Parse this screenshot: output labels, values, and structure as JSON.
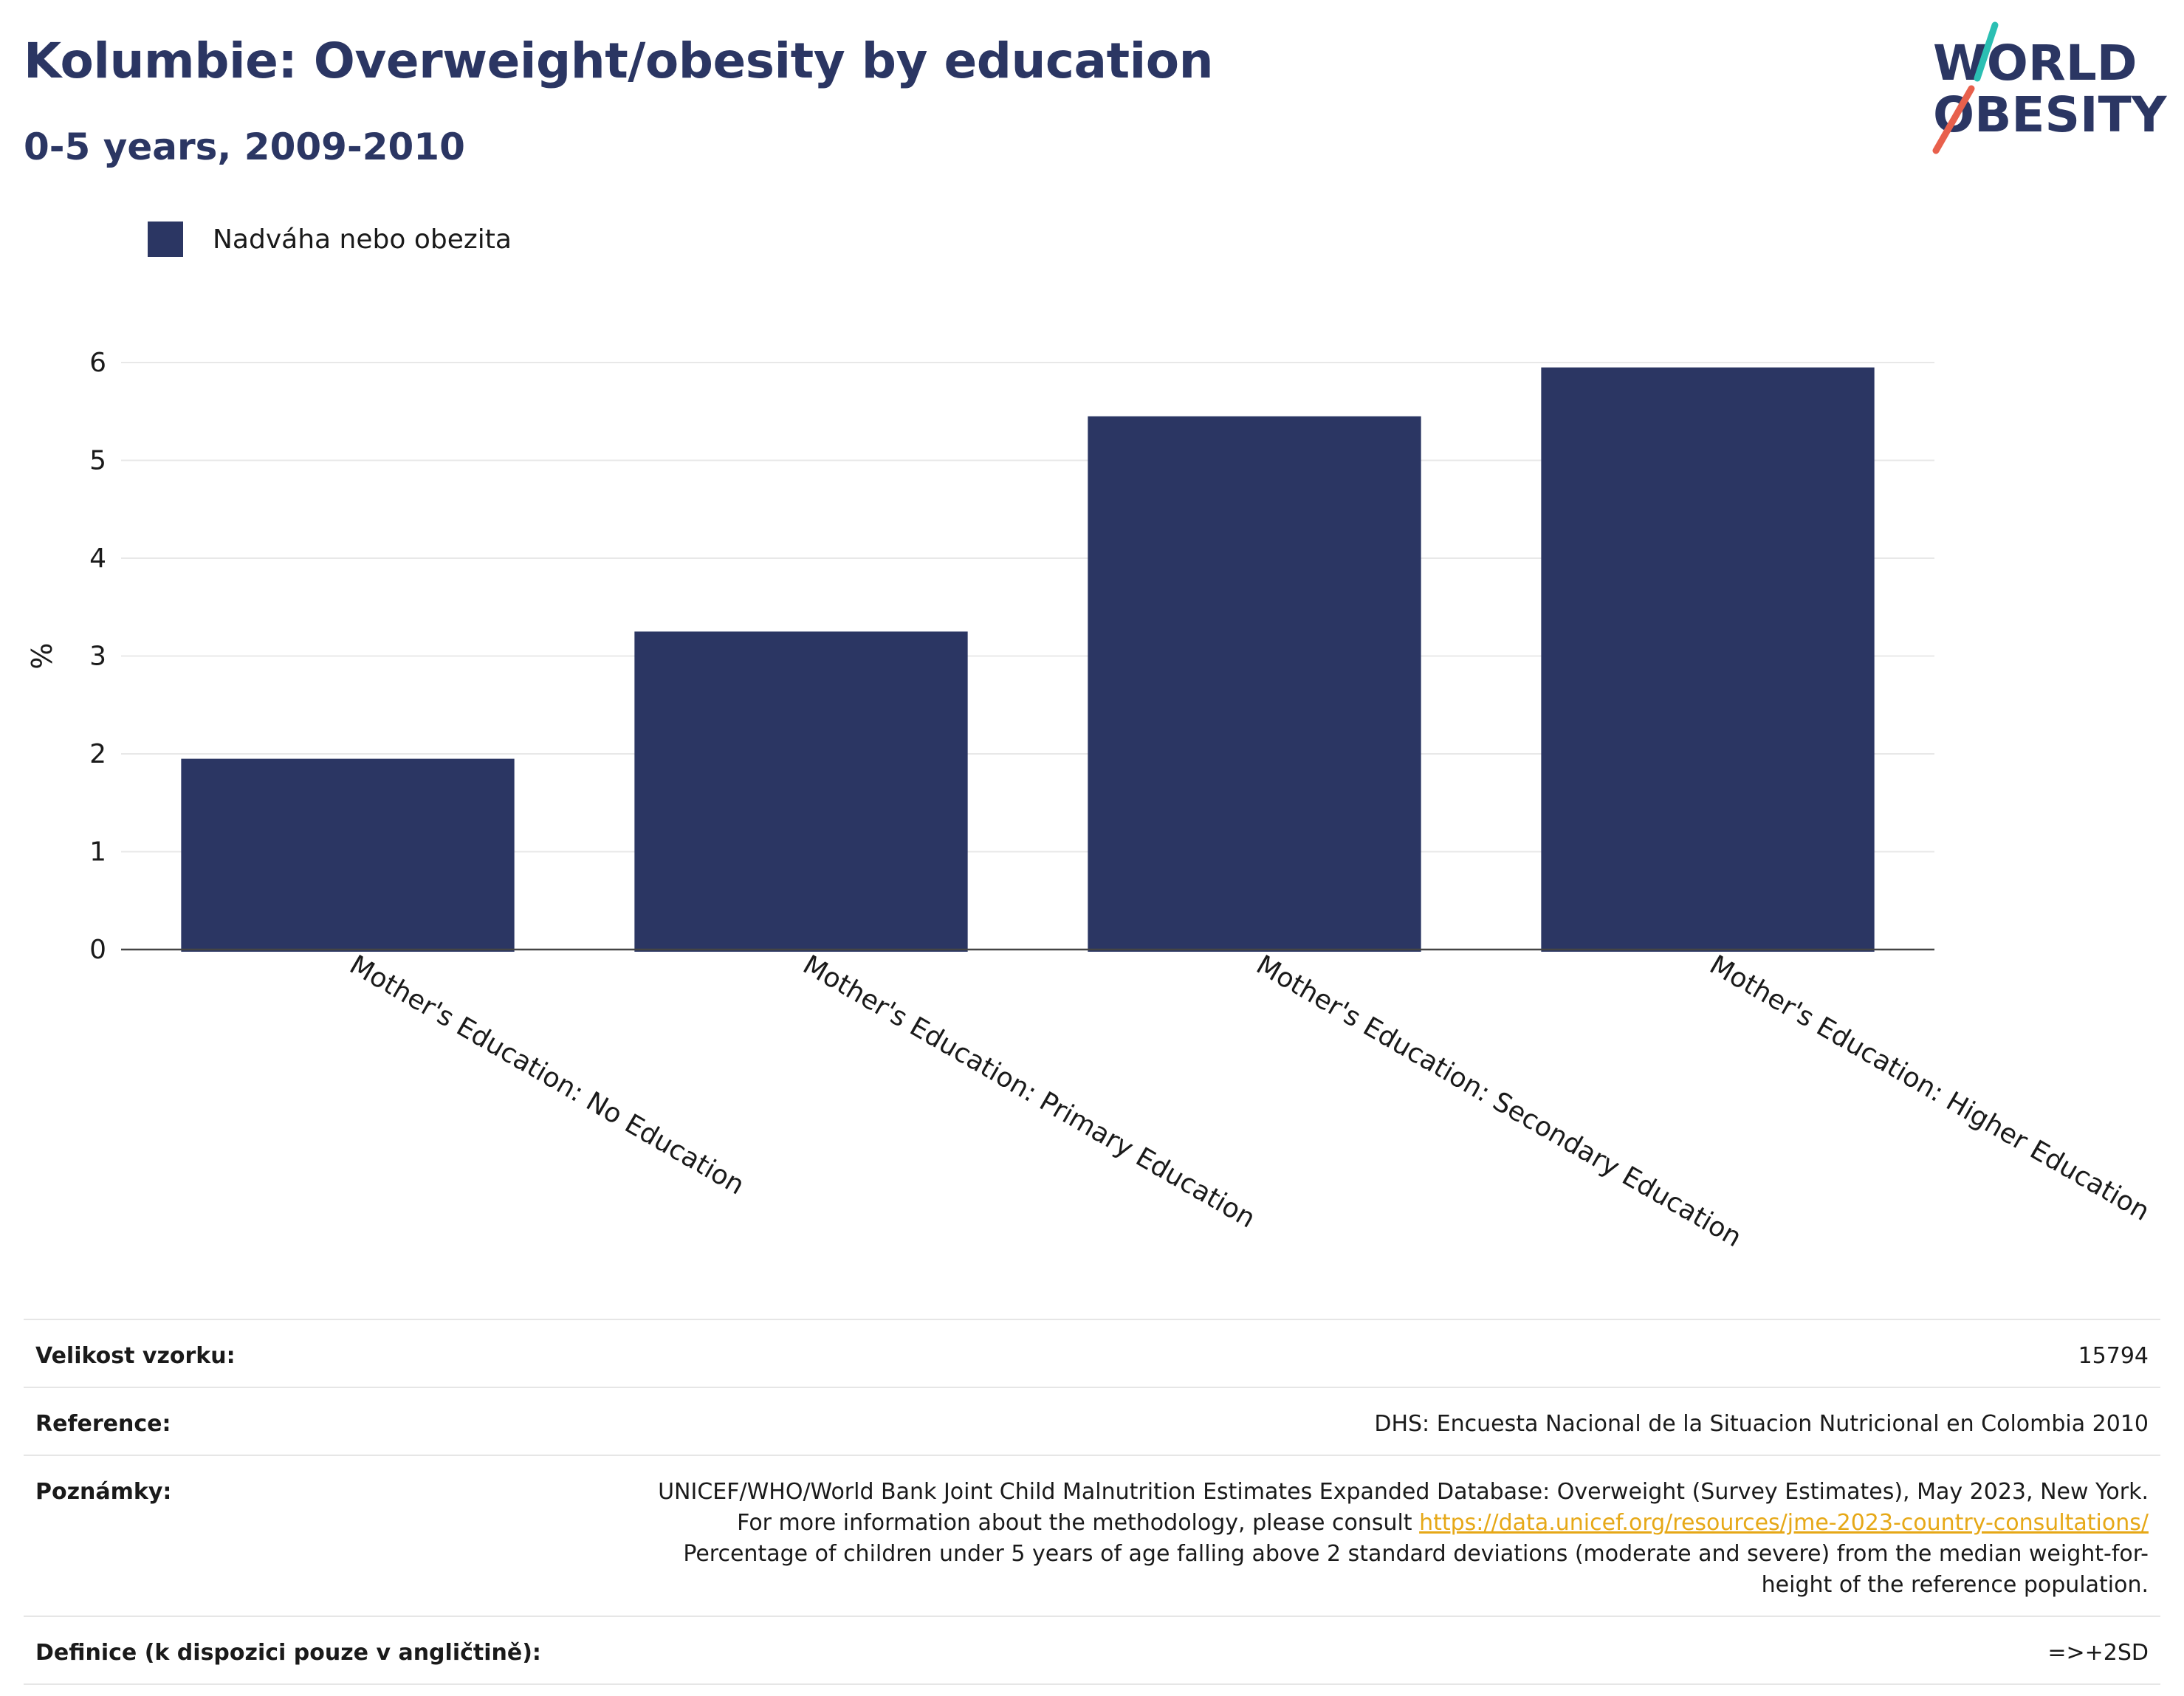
{
  "header": {
    "title": "Kolumbie: Overweight/obesity by education",
    "subtitle": "0-5 years, 2009-2010"
  },
  "logo": {
    "line1": "WORLD",
    "line2": "OBESITY"
  },
  "colors": {
    "bar": "#2b3663",
    "title": "#2b3663",
    "link": "#e6a817",
    "logo_teal": "#2bbfb3",
    "logo_coral": "#e8604c"
  },
  "chart_data": {
    "type": "bar",
    "title": "Kolumbie: Overweight/obesity by education",
    "subtitle": "0-5 years, 2009-2010",
    "categories": [
      "Mother's Education: No Education",
      "Mother's Education: Primary Education",
      "Mother's Education: Secondary Education",
      "Mother's Education: Higher Education"
    ],
    "series": [
      {
        "name": "Nadváha nebo obezita",
        "values": [
          1.95,
          3.25,
          5.45,
          5.95
        ]
      }
    ],
    "xlabel": "",
    "ylabel": "%",
    "ylim": [
      0,
      6.4
    ],
    "yticks": [
      0,
      1,
      2,
      3,
      4,
      5,
      6
    ],
    "grid": true,
    "legend_position": "top-left"
  },
  "info": {
    "rows": [
      {
        "label": "Velikost vzorku:",
        "value": "15794"
      },
      {
        "label": "Reference:",
        "value": "DHS: Encuesta Nacional de la Situacion Nutricional en Colombia 2010"
      },
      {
        "label": "Poznámky:",
        "value_before": "UNICEF/WHO/World Bank Joint Child Malnutrition Estimates Expanded Database: Overweight (Survey Estimates), May 2023, New York. For more information about the methodology, please consult ",
        "link": "https://data.unicef.org/resources/jme-2023-country-consultations/",
        "value_after": " Percentage of children under 5 years of age falling above 2 standard deviations (moderate and severe) from the median weight-for-height of the reference population."
      },
      {
        "label": "Definice (k dispozici pouze v angličtině):",
        "value": "=>+2SD"
      }
    ]
  }
}
